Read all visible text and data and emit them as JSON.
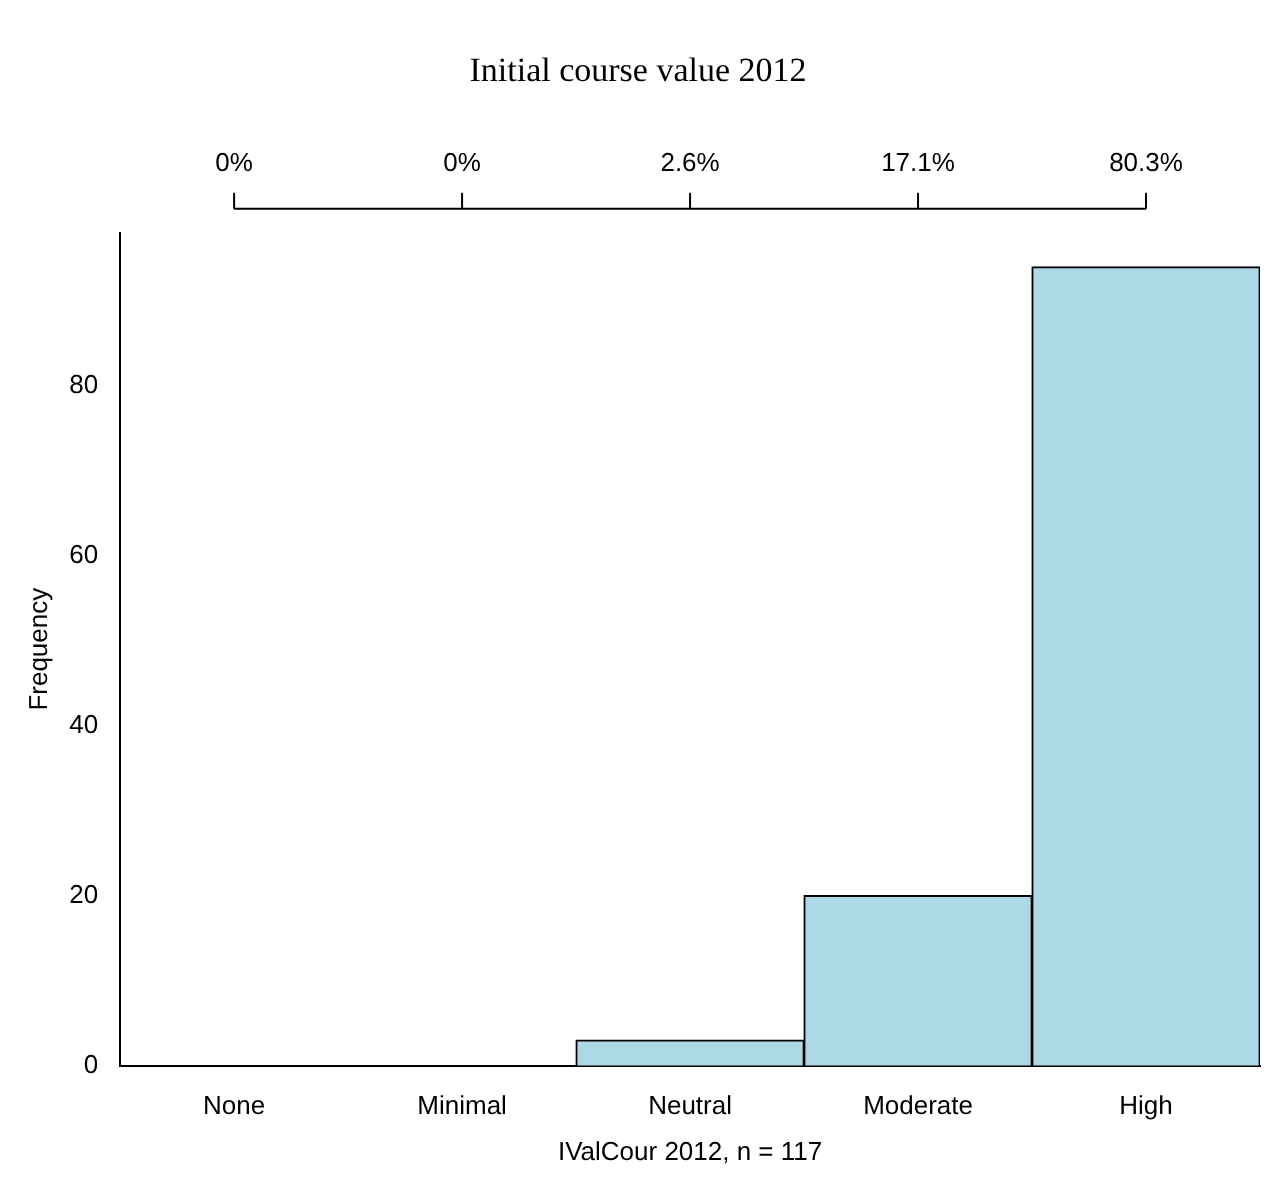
{
  "chart_data": {
    "type": "bar",
    "title": "Initial course value 2012",
    "xlabel": "IValCour 2012, n = 117",
    "ylabel": "Frequency",
    "categories": [
      "None",
      "Minimal",
      "Neutral",
      "Moderate",
      "High"
    ],
    "values": [
      0,
      0,
      3,
      20,
      94
    ],
    "annotations": [
      {
        "text": "0%",
        "x": "None"
      },
      {
        "text": "0%",
        "x": "Minimal"
      },
      {
        "text": "2.6%",
        "x": "Neutral"
      },
      {
        "text": "17.1%",
        "x": "Moderate"
      },
      {
        "text": "80.3%",
        "x": "High"
      }
    ],
    "color": "#add8e6",
    "ylim": [
      0,
      98
    ],
    "yticks": [
      0,
      20,
      40,
      60,
      80
    ],
    "grid": false,
    "legend": false
  }
}
